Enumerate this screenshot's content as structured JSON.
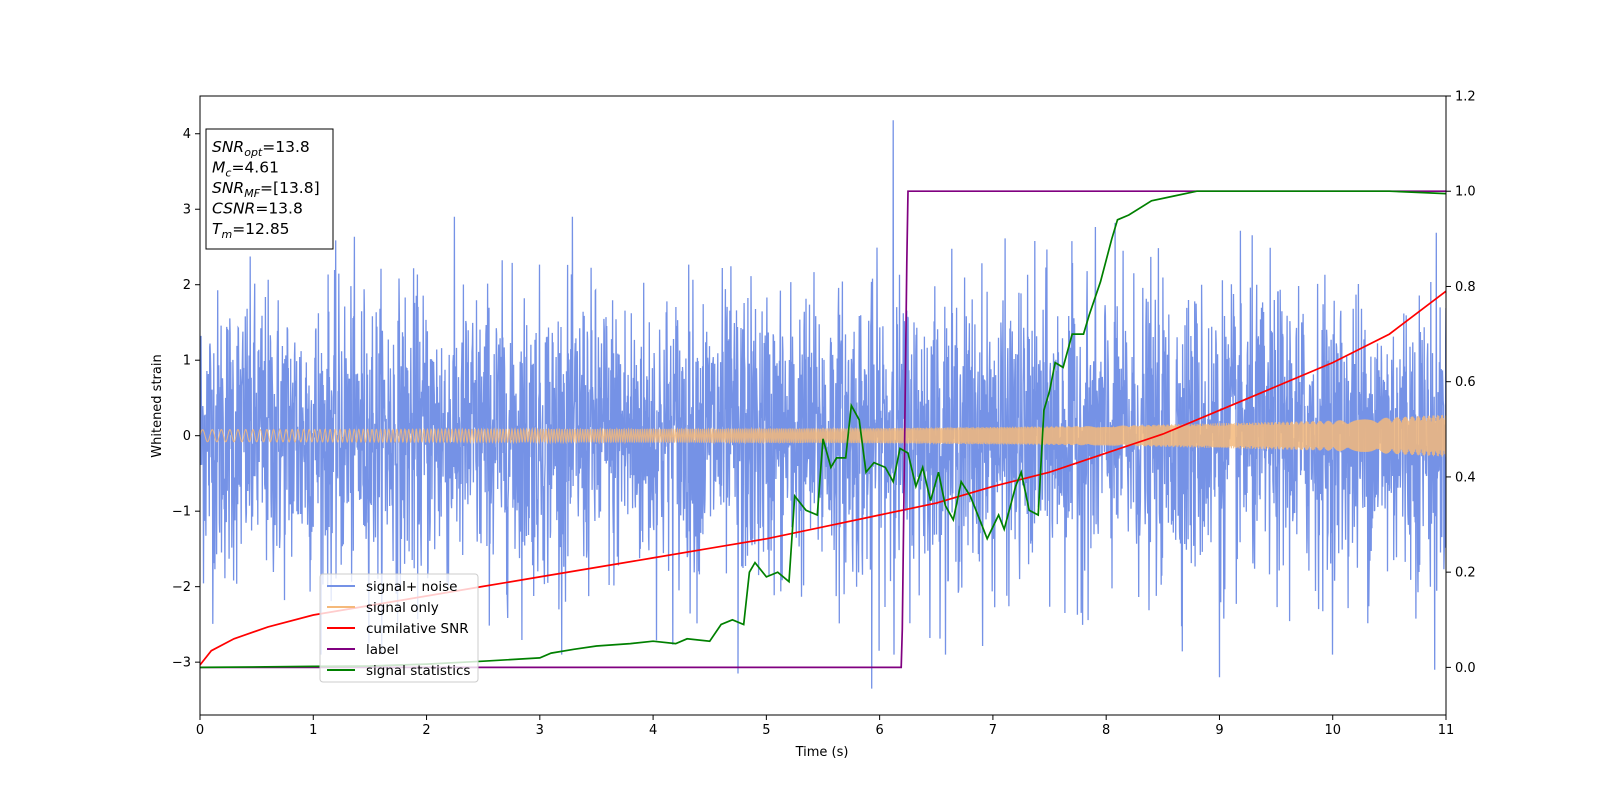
{
  "chart_data": {
    "type": "line",
    "xlabel": "Time (s)",
    "ylabel": "Whitened strain",
    "xlim": [
      0,
      11
    ],
    "ylim": [
      -3.7,
      4.5
    ],
    "y2lim": [
      -0.1,
      1.2
    ],
    "x_ticks": [
      "0",
      "1",
      "2",
      "3",
      "4",
      "5",
      "6",
      "7",
      "8",
      "9",
      "10",
      "11"
    ],
    "y_ticks": [
      "−3",
      "−2",
      "−1",
      "0",
      "1",
      "2",
      "3",
      "4"
    ],
    "y2_ticks": [
      "0.0",
      "0.2",
      "0.4",
      "0.6",
      "0.8",
      "1.0",
      "1.2"
    ],
    "grid": false,
    "legend_position": "lower-left",
    "annotation_box": [
      {
        "base": "SNR",
        "sub": "opt",
        "value": "=13.8"
      },
      {
        "base": "M",
        "sub": "c",
        "value": "=4.61"
      },
      {
        "base": "SNR",
        "sub": "MF",
        "value": "=[13.8]"
      },
      {
        "base": "CSNR",
        "sub": "",
        "value": "=13.8"
      },
      {
        "base": "T",
        "sub": "m",
        "value": "=12.85"
      }
    ],
    "series": [
      {
        "name": "signal+ noise",
        "axis": "left",
        "color": "#7592e6",
        "description_kind": "noise",
        "envelope": [
          [
            0,
            1.5
          ],
          [
            11,
            1.5
          ]
        ],
        "peaks": [
          [
            4.75,
            -3.15
          ],
          [
            5.93,
            -3.35
          ],
          [
            6.12,
            4.18
          ],
          [
            9.0,
            -3.2
          ],
          [
            10.9,
            -3.1
          ]
        ]
      },
      {
        "name": "signal only",
        "axis": "left",
        "color": "#f5b97a",
        "description_kind": "chirp",
        "amplitude": [
          [
            0,
            0.08
          ],
          [
            4,
            0.09
          ],
          [
            6,
            0.1
          ],
          [
            8,
            0.13
          ],
          [
            10,
            0.2
          ],
          [
            11,
            0.28
          ]
        ]
      },
      {
        "name": "cumilative SNR",
        "axis": "right",
        "color": "#ff0000",
        "x": [
          0,
          0.1,
          0.3,
          0.6,
          1,
          1.5,
          2,
          2.5,
          3,
          3.5,
          4,
          4.5,
          5,
          5.5,
          6,
          6.5,
          7,
          7.5,
          8,
          8.5,
          9,
          9.5,
          10,
          10.5,
          11
        ],
        "y": [
          0.005,
          0.035,
          0.06,
          0.085,
          0.11,
          0.13,
          0.15,
          0.17,
          0.19,
          0.21,
          0.23,
          0.25,
          0.27,
          0.295,
          0.32,
          0.345,
          0.38,
          0.41,
          0.45,
          0.49,
          0.54,
          0.59,
          0.64,
          0.7,
          0.79
        ]
      },
      {
        "name": "label",
        "axis": "right",
        "color": "#800080",
        "x": [
          0,
          6.19,
          6.2,
          6.24,
          6.25,
          11
        ],
        "y": [
          0,
          0,
          0.08,
          0.85,
          1.0,
          1.0
        ]
      },
      {
        "name": "signal statistics",
        "axis": "right",
        "color": "#008000",
        "x": [
          0,
          1,
          1.5,
          2,
          2.5,
          3,
          3.1,
          3.3,
          3.5,
          3.8,
          4.0,
          4.2,
          4.3,
          4.5,
          4.6,
          4.7,
          4.8,
          4.85,
          4.9,
          5.0,
          5.1,
          5.2,
          5.25,
          5.35,
          5.45,
          5.5,
          5.57,
          5.62,
          5.7,
          5.75,
          5.82,
          5.88,
          5.95,
          6.05,
          6.12,
          6.18,
          6.25,
          6.32,
          6.38,
          6.45,
          6.52,
          6.58,
          6.65,
          6.72,
          6.8,
          6.9,
          6.95,
          7.05,
          7.1,
          7.2,
          7.25,
          7.32,
          7.4,
          7.45,
          7.5,
          7.55,
          7.62,
          7.7,
          7.8,
          7.85,
          7.95,
          8.05,
          8.1,
          8.2,
          8.4,
          8.6,
          8.8,
          9.0,
          9.5,
          10,
          10.5,
          11
        ],
        "y": [
          0.0,
          0.002,
          0.003,
          0.007,
          0.013,
          0.02,
          0.03,
          0.038,
          0.045,
          0.05,
          0.055,
          0.05,
          0.06,
          0.055,
          0.09,
          0.1,
          0.09,
          0.2,
          0.22,
          0.19,
          0.2,
          0.18,
          0.36,
          0.33,
          0.32,
          0.48,
          0.42,
          0.44,
          0.44,
          0.55,
          0.52,
          0.41,
          0.43,
          0.42,
          0.39,
          0.46,
          0.45,
          0.38,
          0.42,
          0.35,
          0.41,
          0.34,
          0.31,
          0.39,
          0.36,
          0.3,
          0.27,
          0.32,
          0.29,
          0.38,
          0.41,
          0.33,
          0.32,
          0.54,
          0.58,
          0.64,
          0.63,
          0.7,
          0.7,
          0.74,
          0.81,
          0.9,
          0.94,
          0.95,
          0.98,
          0.99,
          1.0,
          1.0,
          1.0,
          1.0,
          1.0,
          0.995
        ]
      }
    ]
  }
}
